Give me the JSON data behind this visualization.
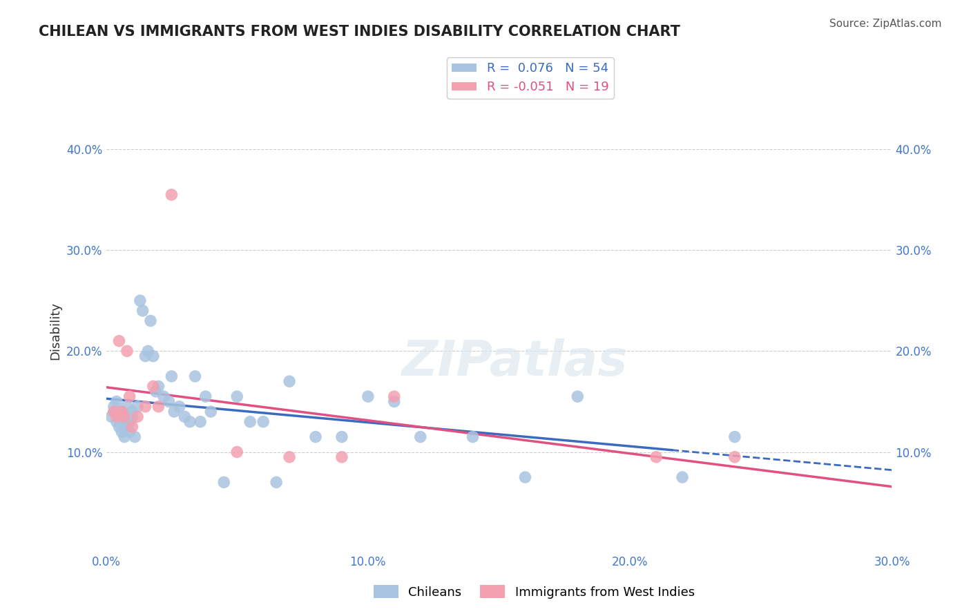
{
  "title": "CHILEAN VS IMMIGRANTS FROM WEST INDIES DISABILITY CORRELATION CHART",
  "source": "Source: ZipAtlas.com",
  "xlabel": "",
  "ylabel": "Disability",
  "xlim": [
    0.0,
    0.3
  ],
  "ylim": [
    0.0,
    0.44
  ],
  "xticks": [
    0.0,
    0.05,
    0.1,
    0.15,
    0.2,
    0.25,
    0.3
  ],
  "xtick_labels": [
    "0.0%",
    "",
    "10.0%",
    "",
    "20.0%",
    "",
    "30.0%"
  ],
  "yticks": [
    0.0,
    0.1,
    0.2,
    0.3,
    0.4
  ],
  "ytick_labels": [
    "",
    "10.0%",
    "20.0%",
    "30.0%",
    "40.0%"
  ],
  "grid_color": "#cccccc",
  "background_color": "#ffffff",
  "chilean_color": "#a8c4e0",
  "west_indies_color": "#f4a0b0",
  "chilean_R": 0.076,
  "chilean_N": 54,
  "west_indies_R": -0.051,
  "west_indies_N": 19,
  "trend_blue": "#3a6bbf",
  "trend_pink": "#e05080",
  "title_color": "#222222",
  "axis_label_color": "#4477cc",
  "chilean_x": [
    0.002,
    0.003,
    0.003,
    0.004,
    0.004,
    0.005,
    0.005,
    0.006,
    0.006,
    0.007,
    0.007,
    0.008,
    0.008,
    0.009,
    0.009,
    0.01,
    0.01,
    0.011,
    0.012,
    0.013,
    0.014,
    0.015,
    0.016,
    0.017,
    0.018,
    0.019,
    0.02,
    0.022,
    0.024,
    0.025,
    0.026,
    0.028,
    0.03,
    0.032,
    0.034,
    0.036,
    0.038,
    0.04,
    0.045,
    0.05,
    0.055,
    0.06,
    0.065,
    0.07,
    0.08,
    0.09,
    0.1,
    0.11,
    0.12,
    0.14,
    0.16,
    0.18,
    0.22,
    0.24
  ],
  "chilean_y": [
    0.135,
    0.14,
    0.145,
    0.13,
    0.15,
    0.125,
    0.135,
    0.12,
    0.14,
    0.115,
    0.13,
    0.125,
    0.145,
    0.13,
    0.12,
    0.135,
    0.14,
    0.115,
    0.145,
    0.25,
    0.24,
    0.195,
    0.2,
    0.23,
    0.195,
    0.16,
    0.165,
    0.155,
    0.15,
    0.175,
    0.14,
    0.145,
    0.135,
    0.13,
    0.175,
    0.13,
    0.155,
    0.14,
    0.07,
    0.155,
    0.13,
    0.13,
    0.07,
    0.17,
    0.115,
    0.115,
    0.155,
    0.15,
    0.115,
    0.115,
    0.075,
    0.155,
    0.075,
    0.115
  ],
  "west_indies_x": [
    0.003,
    0.004,
    0.005,
    0.006,
    0.007,
    0.008,
    0.009,
    0.01,
    0.012,
    0.015,
    0.018,
    0.02,
    0.025,
    0.05,
    0.07,
    0.09,
    0.11,
    0.21,
    0.24
  ],
  "west_indies_y": [
    0.14,
    0.135,
    0.21,
    0.14,
    0.135,
    0.2,
    0.155,
    0.125,
    0.135,
    0.145,
    0.165,
    0.145,
    0.355,
    0.1,
    0.095,
    0.095,
    0.155,
    0.095,
    0.095
  ]
}
